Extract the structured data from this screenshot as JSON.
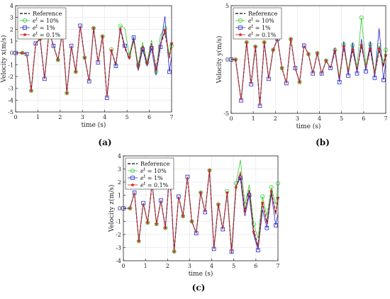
{
  "chart_data": [
    {
      "type": "line",
      "panel_label": "(a)",
      "xlabel": "time (s)",
      "ylabel": "Velocity x(m/s)",
      "xlim": [
        0,
        7
      ],
      "ylim": [
        -5,
        4
      ],
      "xticks": [
        0,
        1,
        2,
        3,
        4,
        5,
        6,
        7
      ],
      "yticks": [
        4,
        3,
        2,
        1,
        0,
        -1,
        -2,
        -3,
        -4,
        -5
      ],
      "grid": true,
      "legend_position": "top-left",
      "series": [
        {
          "name": "Reference",
          "color": "#000000",
          "marker": "none",
          "dash": "4,2",
          "x": [
            0,
            0.3,
            0.5,
            0.7,
            0.9,
            1.1,
            1.3,
            1.5,
            1.7,
            1.9,
            2.1,
            2.3,
            2.5,
            2.7,
            2.9,
            3.1,
            3.3,
            3.5,
            3.7,
            3.9,
            4.1,
            4.3,
            4.5,
            4.7,
            4.9,
            5.1,
            5.3,
            5.5,
            5.7,
            5.9,
            6.1,
            6.3,
            6.5,
            6.7,
            6.9,
            7.0
          ],
          "y": [
            0,
            0,
            -0.1,
            -3.2,
            0.8,
            1.2,
            -2.2,
            1.8,
            0.6,
            -0.6,
            1.7,
            -3.4,
            0.6,
            -1.6,
            2.3,
            -0.4,
            -2.4,
            2.1,
            -0.8,
            1.4,
            -3.8,
            0.2,
            -1.0,
            2.0,
            0.4,
            -0.4,
            1.1,
            -1.2,
            0.6,
            -0.9,
            0.8,
            -1.3,
            0.7,
            1.8,
            -0.4,
            0.9
          ]
        },
        {
          "name": "e^t = 10%",
          "color": "#33cc33",
          "marker": "circle",
          "dash": "",
          "x": [
            0,
            0.3,
            0.5,
            0.7,
            0.9,
            1.1,
            1.3,
            1.5,
            1.7,
            1.9,
            2.1,
            2.3,
            2.5,
            2.7,
            2.9,
            3.1,
            3.3,
            3.5,
            3.7,
            3.9,
            4.1,
            4.3,
            4.5,
            4.7,
            4.9,
            5.1,
            5.3,
            5.5,
            5.7,
            5.9,
            6.1,
            6.3,
            6.5,
            6.7,
            6.9,
            7.0
          ],
          "y": [
            0,
            0,
            -0.1,
            -3.2,
            0.8,
            1.2,
            -2.2,
            1.8,
            0.6,
            -0.6,
            1.7,
            -3.4,
            0.6,
            -1.6,
            2.3,
            -0.4,
            -2.4,
            2.1,
            -0.8,
            1.4,
            -3.8,
            0.3,
            -1.2,
            2.3,
            2.1,
            -0.2,
            1.4,
            -1.0,
            0.9,
            -0.8,
            1.1,
            -1.6,
            1.5,
            2.1,
            -0.2,
            0.6
          ]
        },
        {
          "name": "e^t = 1%",
          "color": "#2222cc",
          "marker": "square",
          "dash": "",
          "x": [
            0,
            0.3,
            0.5,
            0.7,
            0.9,
            1.1,
            1.3,
            1.5,
            1.7,
            1.9,
            2.1,
            2.3,
            2.5,
            2.7,
            2.9,
            3.1,
            3.3,
            3.5,
            3.7,
            3.9,
            4.1,
            4.3,
            4.5,
            4.7,
            4.9,
            5.1,
            5.3,
            5.5,
            5.7,
            5.9,
            6.1,
            6.3,
            6.5,
            6.7,
            6.9,
            7.0
          ],
          "y": [
            0,
            0,
            -0.1,
            -3.2,
            0.8,
            1.2,
            -2.2,
            1.8,
            0.6,
            -0.6,
            1.7,
            -3.4,
            0.6,
            -1.6,
            2.3,
            -0.4,
            -2.4,
            2.1,
            -0.8,
            1.4,
            -3.8,
            0.2,
            -1.1,
            2.1,
            0.6,
            -0.5,
            1.3,
            -1.5,
            0.3,
            -1.1,
            0.4,
            -1.9,
            0.5,
            3.1,
            -1.6,
            -0.3
          ]
        },
        {
          "name": "e^t = 0.1%",
          "color": "#cc2222",
          "marker": "star",
          "dash": "",
          "x": [
            0,
            0.3,
            0.5,
            0.7,
            0.9,
            1.1,
            1.3,
            1.5,
            1.7,
            1.9,
            2.1,
            2.3,
            2.5,
            2.7,
            2.9,
            3.1,
            3.3,
            3.5,
            3.7,
            3.9,
            4.1,
            4.3,
            4.5,
            4.7,
            4.9,
            5.1,
            5.3,
            5.5,
            5.7,
            5.9,
            6.1,
            6.3,
            6.5,
            6.7,
            6.9,
            7.0
          ],
          "y": [
            0,
            0,
            -0.1,
            -3.2,
            0.8,
            1.2,
            -2.2,
            1.8,
            0.6,
            -0.6,
            1.7,
            -3.4,
            0.6,
            -1.6,
            2.3,
            -0.4,
            -2.4,
            2.1,
            -0.8,
            1.4,
            -3.8,
            0.2,
            -1.0,
            2.0,
            0.5,
            -0.4,
            1.1,
            -1.2,
            0.6,
            -0.9,
            0.8,
            -1.4,
            0.8,
            1.9,
            -0.5,
            0.8
          ]
        }
      ]
    },
    {
      "type": "line",
      "panel_label": "(b)",
      "xlabel": "time (s)",
      "ylabel": "Velocity y(m/s)",
      "xlim": [
        0,
        7
      ],
      "ylim": [
        -5,
        5
      ],
      "xticks": [
        0,
        1,
        2,
        3,
        4,
        5,
        6,
        7
      ],
      "yticks": [
        5,
        0,
        -5
      ],
      "grid": true,
      "legend_position": "top-left",
      "series": [
        {
          "name": "Reference",
          "color": "#000000",
          "marker": "none",
          "dash": "4,2",
          "x": [
            0,
            0.2,
            0.45,
            0.7,
            0.9,
            1.1,
            1.3,
            1.5,
            1.7,
            1.9,
            2.1,
            2.3,
            2.5,
            2.7,
            2.9,
            3.1,
            3.3,
            3.5,
            3.7,
            3.9,
            4.1,
            4.3,
            4.5,
            4.7,
            4.9,
            5.1,
            5.3,
            5.5,
            5.7,
            5.9,
            6.1,
            6.3,
            6.5,
            6.7,
            6.9,
            7.0
          ],
          "y": [
            0,
            0,
            -3.8,
            1.6,
            -2.3,
            1.2,
            -4.3,
            1.6,
            -1.8,
            0.9,
            1.9,
            -0.8,
            -2.2,
            1.9,
            -0.8,
            -2.1,
            1.3,
            0.5,
            -1.3,
            0.6,
            -1.3,
            -0.1,
            -0.8,
            0.8,
            -1.8,
            1.2,
            -1.2,
            0.9,
            -1.0,
            1.3,
            -0.8,
            1.0,
            -1.4,
            0.9,
            -0.6,
            0.4
          ]
        },
        {
          "name": "e^t = 10%",
          "color": "#33cc33",
          "marker": "circle",
          "dash": "",
          "x": [
            0,
            0.2,
            0.45,
            0.7,
            0.9,
            1.1,
            1.3,
            1.5,
            1.7,
            1.9,
            2.1,
            2.3,
            2.5,
            2.7,
            2.9,
            3.1,
            3.3,
            3.5,
            3.7,
            3.9,
            4.1,
            4.3,
            4.5,
            4.7,
            4.9,
            5.1,
            5.3,
            5.5,
            5.7,
            5.9,
            6.1,
            6.3,
            6.5,
            6.7,
            6.9,
            7.0
          ],
          "y": [
            0,
            0,
            -3.8,
            1.6,
            -2.3,
            1.2,
            -4.3,
            1.6,
            -1.8,
            0.9,
            1.9,
            -0.8,
            -2.2,
            1.9,
            -0.8,
            -2.1,
            1.3,
            0.5,
            -1.3,
            0.6,
            -1.3,
            -0.1,
            -0.8,
            0.9,
            -1.6,
            1.4,
            -1.0,
            1.3,
            -0.7,
            3.9,
            -0.5,
            1.4,
            -1.1,
            1.3,
            -0.3,
            0.9
          ]
        },
        {
          "name": "e^t = 1%",
          "color": "#2222cc",
          "marker": "square",
          "dash": "",
          "x": [
            0,
            0.2,
            0.45,
            0.7,
            0.9,
            1.1,
            1.3,
            1.5,
            1.7,
            1.9,
            2.1,
            2.3,
            2.5,
            2.7,
            2.9,
            3.1,
            3.3,
            3.5,
            3.7,
            3.9,
            4.1,
            4.3,
            4.5,
            4.7,
            4.9,
            5.1,
            5.3,
            5.5,
            5.7,
            5.9,
            6.1,
            6.3,
            6.5,
            6.7,
            6.9,
            7.0
          ],
          "y": [
            0,
            0,
            -3.8,
            1.6,
            -2.3,
            1.2,
            -4.3,
            1.6,
            -1.8,
            0.9,
            1.9,
            -0.8,
            -2.2,
            1.9,
            -0.8,
            -2.1,
            1.3,
            0.5,
            -1.3,
            0.6,
            -1.3,
            -0.1,
            -0.8,
            1.1,
            -2.1,
            1.7,
            -1.5,
            1.6,
            -1.3,
            1.9,
            -1.1,
            1.7,
            -1.7,
            2.9,
            -1.9,
            -0.3
          ]
        },
        {
          "name": "e^t = 0.1%",
          "color": "#cc2222",
          "marker": "star",
          "dash": "",
          "x": [
            0,
            0.2,
            0.45,
            0.7,
            0.9,
            1.1,
            1.3,
            1.5,
            1.7,
            1.9,
            2.1,
            2.3,
            2.5,
            2.7,
            2.9,
            3.1,
            3.3,
            3.5,
            3.7,
            3.9,
            4.1,
            4.3,
            4.5,
            4.7,
            4.9,
            5.1,
            5.3,
            5.5,
            5.7,
            5.9,
            6.1,
            6.3,
            6.5,
            6.7,
            6.9,
            7.0
          ],
          "y": [
            0,
            0,
            -3.8,
            1.6,
            -2.3,
            1.2,
            -4.3,
            1.6,
            -1.8,
            0.9,
            1.9,
            -0.8,
            -2.2,
            1.9,
            -0.8,
            -2.1,
            1.3,
            0.5,
            -1.3,
            0.6,
            -1.3,
            -0.1,
            -0.8,
            0.8,
            -1.8,
            1.2,
            -1.2,
            0.9,
            -1.0,
            1.3,
            -0.8,
            1.0,
            -1.4,
            1.0,
            -0.7,
            0.4
          ]
        }
      ]
    },
    {
      "type": "line",
      "panel_label": "(c)",
      "xlabel": "time (s)",
      "ylabel": "Velocity z(m/s)",
      "xlim": [
        0,
        7
      ],
      "ylim": [
        -4,
        4
      ],
      "xticks": [
        0,
        1,
        2,
        3,
        4,
        5,
        6,
        7
      ],
      "yticks": [
        4,
        3,
        2,
        1,
        0,
        -1,
        -2,
        -3,
        -4
      ],
      "grid": true,
      "legend_position": "top-left",
      "series": [
        {
          "name": "Reference",
          "color": "#000000",
          "marker": "none",
          "dash": "4,2",
          "x": [
            0,
            0.3,
            0.5,
            0.7,
            0.9,
            1.1,
            1.3,
            1.5,
            1.7,
            1.9,
            2.1,
            2.3,
            2.5,
            2.7,
            2.9,
            3.1,
            3.3,
            3.5,
            3.7,
            3.9,
            4.1,
            4.3,
            4.5,
            4.7,
            4.9,
            5.1,
            5.3,
            5.5,
            5.7,
            5.9,
            6.1,
            6.3,
            6.5,
            6.7,
            6.9,
            7.0
          ],
          "y": [
            0,
            0,
            1.2,
            -2.5,
            0.4,
            -1.1,
            1.9,
            -1.2,
            0.6,
            -1.5,
            2.8,
            -3.3,
            0.9,
            -0.6,
            2.4,
            -1.0,
            -1.9,
            1.2,
            -0.3,
            2.9,
            -3.1,
            0.3,
            -1.6,
            1.2,
            -3.4,
            1.6,
            2.6,
            -0.3,
            1.4,
            -1.7,
            -2.9,
            0.4,
            -1.1,
            1.3,
            -0.4,
            0.8
          ]
        },
        {
          "name": "e^t = 10%",
          "color": "#33cc33",
          "marker": "circle",
          "dash": "",
          "x": [
            0,
            0.3,
            0.5,
            0.7,
            0.9,
            1.1,
            1.3,
            1.5,
            1.7,
            1.9,
            2.1,
            2.3,
            2.5,
            2.7,
            2.9,
            3.1,
            3.3,
            3.5,
            3.7,
            3.9,
            4.1,
            4.3,
            4.5,
            4.7,
            4.9,
            5.1,
            5.3,
            5.5,
            5.7,
            5.9,
            6.1,
            6.3,
            6.5,
            6.7,
            6.9,
            7.0
          ],
          "y": [
            0,
            0,
            1.2,
            -2.5,
            0.4,
            -1.1,
            1.9,
            -1.2,
            0.6,
            -1.5,
            2.8,
            -3.3,
            0.9,
            -0.6,
            2.4,
            -1.0,
            -1.9,
            1.2,
            -0.3,
            2.9,
            -3.1,
            0.3,
            -1.6,
            1.3,
            -3.2,
            1.9,
            3.7,
            0.3,
            1.8,
            -1.2,
            -2.3,
            0.9,
            -0.6,
            1.6,
            0.3,
            1.9
          ]
        },
        {
          "name": "e^t = 1%",
          "color": "#2222cc",
          "marker": "square",
          "dash": "",
          "x": [
            0,
            0.3,
            0.5,
            0.7,
            0.9,
            1.1,
            1.3,
            1.5,
            1.7,
            1.9,
            2.1,
            2.3,
            2.5,
            2.7,
            2.9,
            3.1,
            3.3,
            3.5,
            3.7,
            3.9,
            4.1,
            4.3,
            4.5,
            4.7,
            4.9,
            5.1,
            5.3,
            5.5,
            5.7,
            5.9,
            6.1,
            6.3,
            6.5,
            6.7,
            6.9,
            7.0
          ],
          "y": [
            0,
            0,
            1.2,
            -2.5,
            0.4,
            -1.1,
            1.9,
            -1.2,
            0.6,
            -1.5,
            2.8,
            -3.3,
            0.9,
            -0.6,
            2.4,
            -1.0,
            -1.9,
            1.2,
            -0.3,
            2.9,
            -3.1,
            0.3,
            -1.6,
            1.1,
            -3.3,
            1.7,
            2.3,
            -0.6,
            1.0,
            -2.0,
            -3.2,
            -0.1,
            -1.5,
            1.1,
            -1.3,
            -0.4
          ]
        },
        {
          "name": "e^t = 0.1%",
          "color": "#cc2222",
          "marker": "star",
          "dash": "",
          "x": [
            0,
            0.3,
            0.5,
            0.7,
            0.9,
            1.1,
            1.3,
            1.5,
            1.7,
            1.9,
            2.1,
            2.3,
            2.5,
            2.7,
            2.9,
            3.1,
            3.3,
            3.5,
            3.7,
            3.9,
            4.1,
            4.3,
            4.5,
            4.7,
            4.9,
            5.1,
            5.3,
            5.5,
            5.7,
            5.9,
            6.1,
            6.3,
            6.5,
            6.7,
            6.9,
            7.0
          ],
          "y": [
            0,
            0,
            1.2,
            -2.5,
            0.4,
            -1.1,
            1.9,
            -1.2,
            0.6,
            -1.5,
            2.8,
            -3.3,
            0.9,
            -0.6,
            2.4,
            -1.0,
            -1.9,
            1.2,
            -0.3,
            2.9,
            -3.1,
            0.3,
            -1.6,
            1.2,
            -3.4,
            1.6,
            2.8,
            -0.2,
            1.4,
            -1.8,
            -3.0,
            0.4,
            -1.2,
            1.3,
            -0.5,
            0.8
          ]
        }
      ]
    }
  ]
}
